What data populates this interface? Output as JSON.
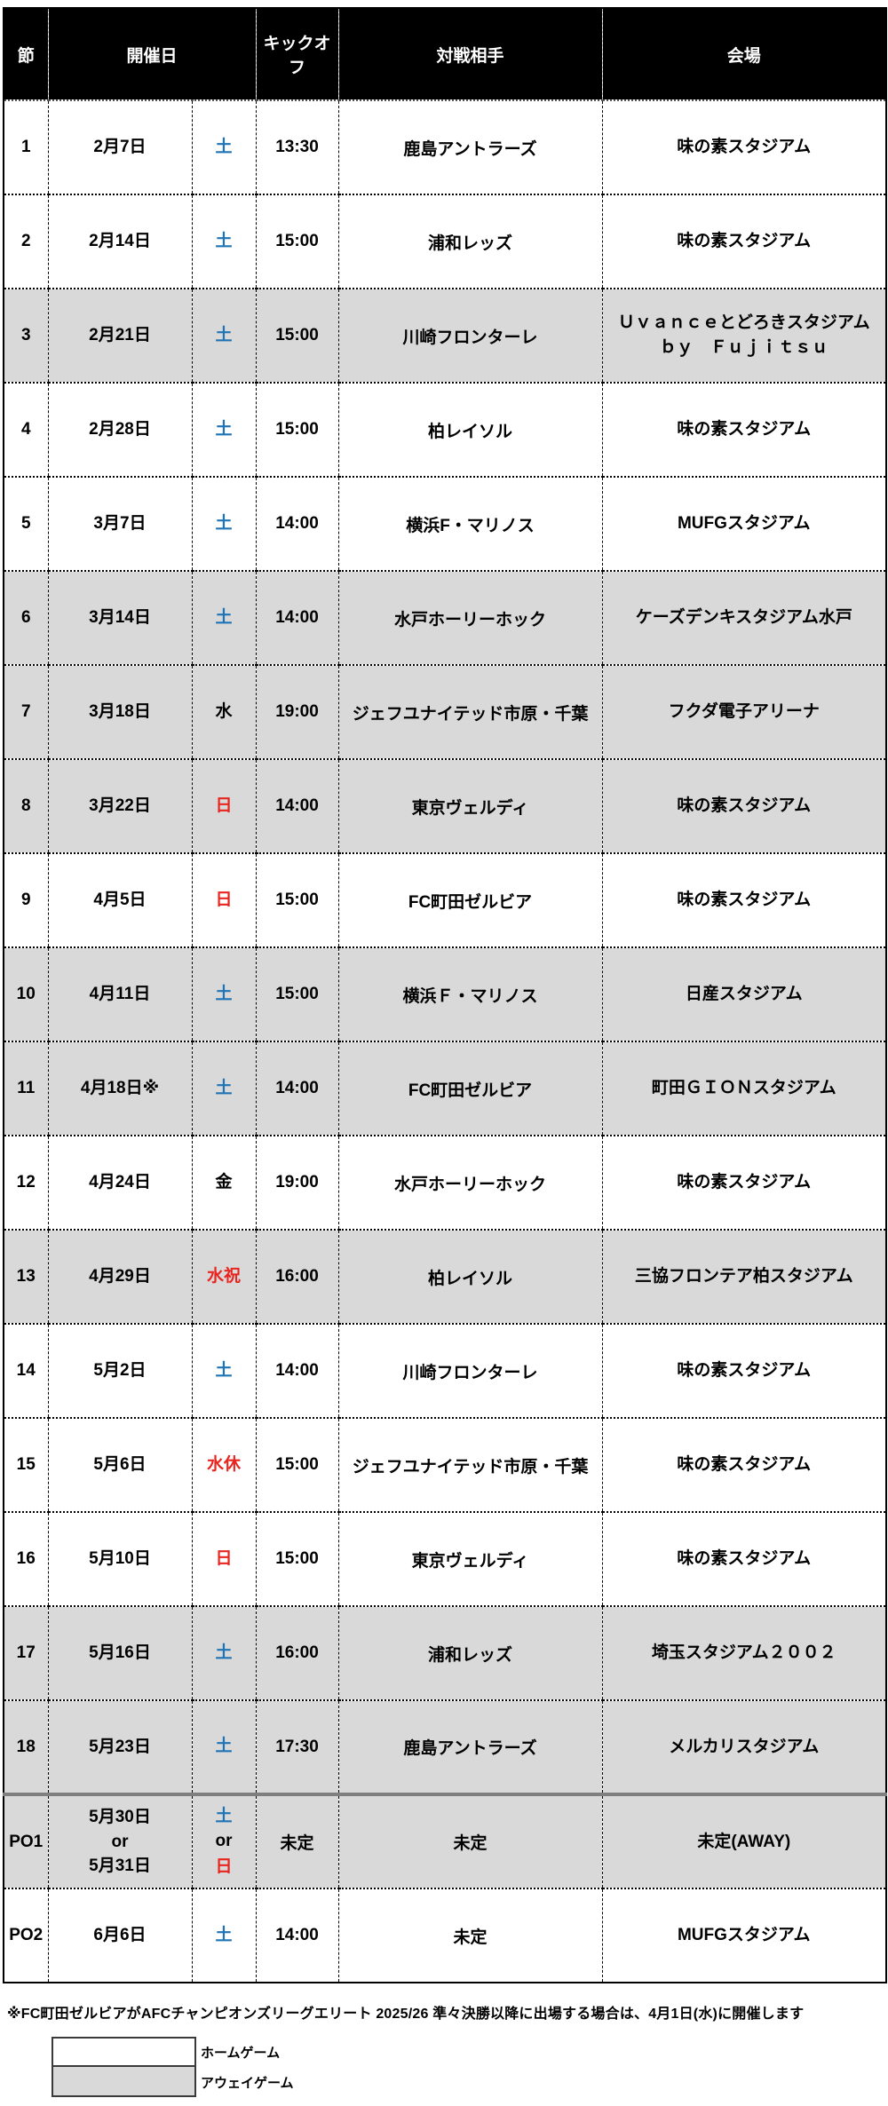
{
  "table": {
    "headers": {
      "round": "節",
      "date": "開催日",
      "kickoff": "キックオフ",
      "opponent": "対戦相手",
      "venue": "会場"
    },
    "rows": [
      {
        "no": "1",
        "date": "2月7日",
        "day": "土",
        "day_color": "blue",
        "kickoff": "13:30",
        "opponent": "鹿島アントラーズ",
        "venue": "味の素スタジアム",
        "kind": "home"
      },
      {
        "no": "2",
        "date": "2月14日",
        "day": "土",
        "day_color": "blue",
        "kickoff": "15:00",
        "opponent": "浦和レッズ",
        "venue": "味の素スタジアム",
        "kind": "home"
      },
      {
        "no": "3",
        "date": "2月21日",
        "day": "土",
        "day_color": "blue",
        "kickoff": "15:00",
        "opponent": "川崎フロンターレ",
        "venue": "Ｕｖａｎｃｅとどろきスタジアム\nｂｙ　Ｆｕｊｉｔｓｕ",
        "kind": "away"
      },
      {
        "no": "4",
        "date": "2月28日",
        "day": "土",
        "day_color": "blue",
        "kickoff": "15:00",
        "opponent": "柏レイソル",
        "venue": "味の素スタジアム",
        "kind": "home"
      },
      {
        "no": "5",
        "date": "3月7日",
        "day": "土",
        "day_color": "blue",
        "kickoff": "14:00",
        "opponent": "横浜F・マリノス",
        "venue": "MUFGスタジアム",
        "kind": "home"
      },
      {
        "no": "6",
        "date": "3月14日",
        "day": "土",
        "day_color": "blue",
        "kickoff": "14:00",
        "opponent": "水戸ホーリーホック",
        "venue": "ケーズデンキスタジアム水戸",
        "kind": "away"
      },
      {
        "no": "7",
        "date": "3月18日",
        "day": "水",
        "day_color": "black",
        "kickoff": "19:00",
        "opponent": "ジェフユナイテッド市原・千葉",
        "venue": "フクダ電子アリーナ",
        "kind": "away"
      },
      {
        "no": "8",
        "date": "3月22日",
        "day": "日",
        "day_color": "red",
        "kickoff": "14:00",
        "opponent": "東京ヴェルディ",
        "venue": "味の素スタジアム",
        "kind": "away"
      },
      {
        "no": "9",
        "date": "4月5日",
        "day": "日",
        "day_color": "red",
        "kickoff": "15:00",
        "opponent": "FC町田ゼルビア",
        "venue": "味の素スタジアム",
        "kind": "home"
      },
      {
        "no": "10",
        "date": "4月11日",
        "day": "土",
        "day_color": "blue",
        "kickoff": "15:00",
        "opponent": "横浜Ｆ・マリノス",
        "venue": "日産スタジアム",
        "kind": "away"
      },
      {
        "no": "11",
        "date": "4月18日※",
        "day": "土",
        "day_color": "blue",
        "kickoff": "14:00",
        "opponent": "FC町田ゼルビア",
        "venue": "町田ＧＩＯＮスタジアム",
        "kind": "away"
      },
      {
        "no": "12",
        "date": "4月24日",
        "day": "金",
        "day_color": "black",
        "kickoff": "19:00",
        "opponent": "水戸ホーリーホック",
        "venue": "味の素スタジアム",
        "kind": "home"
      },
      {
        "no": "13",
        "date": "4月29日",
        "day": "水祝",
        "day_color": "red",
        "kickoff": "16:00",
        "opponent": "柏レイソル",
        "venue": "三協フロンテア柏スタジアム",
        "kind": "away"
      },
      {
        "no": "14",
        "date": "5月2日",
        "day": "土",
        "day_color": "blue",
        "kickoff": "14:00",
        "opponent": "川崎フロンターレ",
        "venue": "味の素スタジアム",
        "kind": "home"
      },
      {
        "no": "15",
        "date": "5月6日",
        "day": "水休",
        "day_color": "red",
        "kickoff": "15:00",
        "opponent": "ジェフユナイテッド市原・千葉",
        "venue": "味の素スタジアム",
        "kind": "home"
      },
      {
        "no": "16",
        "date": "5月10日",
        "day": "日",
        "day_color": "red",
        "kickoff": "15:00",
        "opponent": "東京ヴェルディ",
        "venue": "味の素スタジアム",
        "kind": "home"
      },
      {
        "no": "17",
        "date": "5月16日",
        "day": "土",
        "day_color": "blue",
        "kickoff": "16:00",
        "opponent": "浦和レッズ",
        "venue": "埼玉スタジアム２００２",
        "kind": "away"
      },
      {
        "no": "18",
        "date": "5月23日",
        "day": "土",
        "day_color": "blue",
        "kickoff": "17:30",
        "opponent": "鹿島アントラーズ",
        "venue": "メルカリスタジアム",
        "kind": "away"
      },
      {
        "no": "PO1",
        "date": "5月30日\nor\n5月31日",
        "day_lines": [
          {
            "text": "土",
            "color": "blue"
          },
          {
            "text": "or",
            "color": "black"
          },
          {
            "text": "日",
            "color": "red"
          }
        ],
        "kickoff": "未定",
        "opponent": "未定",
        "venue": "未定(AWAY)",
        "kind": "away"
      },
      {
        "no": "PO2",
        "date": "6月6日",
        "day": "土",
        "day_color": "blue",
        "kickoff": "14:00",
        "opponent": "未定",
        "venue": "MUFGスタジアム",
        "kind": "home"
      }
    ]
  },
  "note": "※FC町田ゼルビアがAFCチャンピオンズリーグエリート 2025/26 準々決勝以降に出場する場合は、4月1日(水)に開催します",
  "legend": {
    "home_label": "ホームゲーム",
    "away_label": "アウェイゲーム"
  },
  "colors": {
    "saturday_blue": "#1f74b5",
    "sunday_holiday_red": "#e8251f",
    "away_row_gray": "#d9d9d9",
    "header_bg": "#000000",
    "header_text": "#ffffff"
  }
}
